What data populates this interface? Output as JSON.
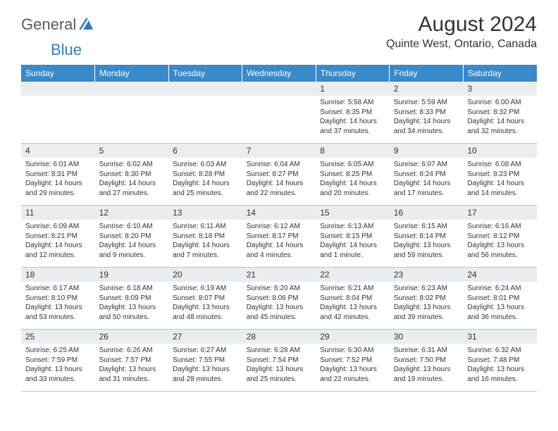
{
  "brand": {
    "text_general": "General",
    "text_blue": "Blue",
    "mark_color": "#2f7fc0"
  },
  "header": {
    "title": "August 2024",
    "location": "Quinte West, Ontario, Canada"
  },
  "colors": {
    "header_bg": "#3a89c9",
    "daynum_bg": "#e9edef",
    "border": "#b8c4cc",
    "text": "#333333"
  },
  "weekdays": [
    "Sunday",
    "Monday",
    "Tuesday",
    "Wednesday",
    "Thursday",
    "Friday",
    "Saturday"
  ],
  "weeks": [
    {
      "nums": [
        "",
        "",
        "",
        "",
        "1",
        "2",
        "3"
      ],
      "info": [
        "",
        "",
        "",
        "",
        "Sunrise: 5:58 AM\nSunset: 8:35 PM\nDaylight: 14 hours\nand 37 minutes.",
        "Sunrise: 5:59 AM\nSunset: 8:33 PM\nDaylight: 14 hours\nand 34 minutes.",
        "Sunrise: 6:00 AM\nSunset: 8:32 PM\nDaylight: 14 hours\nand 32 minutes."
      ]
    },
    {
      "nums": [
        "4",
        "5",
        "6",
        "7",
        "8",
        "9",
        "10"
      ],
      "info": [
        "Sunrise: 6:01 AM\nSunset: 8:31 PM\nDaylight: 14 hours\nand 29 minutes.",
        "Sunrise: 6:02 AM\nSunset: 8:30 PM\nDaylight: 14 hours\nand 27 minutes.",
        "Sunrise: 6:03 AM\nSunset: 8:28 PM\nDaylight: 14 hours\nand 25 minutes.",
        "Sunrise: 6:04 AM\nSunset: 8:27 PM\nDaylight: 14 hours\nand 22 minutes.",
        "Sunrise: 6:05 AM\nSunset: 8:25 PM\nDaylight: 14 hours\nand 20 minutes.",
        "Sunrise: 6:07 AM\nSunset: 8:24 PM\nDaylight: 14 hours\nand 17 minutes.",
        "Sunrise: 6:08 AM\nSunset: 8:23 PM\nDaylight: 14 hours\nand 14 minutes."
      ]
    },
    {
      "nums": [
        "11",
        "12",
        "13",
        "14",
        "15",
        "16",
        "17"
      ],
      "info": [
        "Sunrise: 6:09 AM\nSunset: 8:21 PM\nDaylight: 14 hours\nand 12 minutes.",
        "Sunrise: 6:10 AM\nSunset: 8:20 PM\nDaylight: 14 hours\nand 9 minutes.",
        "Sunrise: 6:11 AM\nSunset: 8:18 PM\nDaylight: 14 hours\nand 7 minutes.",
        "Sunrise: 6:12 AM\nSunset: 8:17 PM\nDaylight: 14 hours\nand 4 minutes.",
        "Sunrise: 6:13 AM\nSunset: 8:15 PM\nDaylight: 14 hours\nand 1 minute.",
        "Sunrise: 6:15 AM\nSunset: 8:14 PM\nDaylight: 13 hours\nand 59 minutes.",
        "Sunrise: 6:16 AM\nSunset: 8:12 PM\nDaylight: 13 hours\nand 56 minutes."
      ]
    },
    {
      "nums": [
        "18",
        "19",
        "20",
        "21",
        "22",
        "23",
        "24"
      ],
      "info": [
        "Sunrise: 6:17 AM\nSunset: 8:10 PM\nDaylight: 13 hours\nand 53 minutes.",
        "Sunrise: 6:18 AM\nSunset: 8:09 PM\nDaylight: 13 hours\nand 50 minutes.",
        "Sunrise: 6:19 AM\nSunset: 8:07 PM\nDaylight: 13 hours\nand 48 minutes.",
        "Sunrise: 6:20 AM\nSunset: 8:06 PM\nDaylight: 13 hours\nand 45 minutes.",
        "Sunrise: 6:21 AM\nSunset: 8:04 PM\nDaylight: 13 hours\nand 42 minutes.",
        "Sunrise: 6:23 AM\nSunset: 8:02 PM\nDaylight: 13 hours\nand 39 minutes.",
        "Sunrise: 6:24 AM\nSunset: 8:01 PM\nDaylight: 13 hours\nand 36 minutes."
      ]
    },
    {
      "nums": [
        "25",
        "26",
        "27",
        "28",
        "29",
        "30",
        "31"
      ],
      "info": [
        "Sunrise: 6:25 AM\nSunset: 7:59 PM\nDaylight: 13 hours\nand 33 minutes.",
        "Sunrise: 6:26 AM\nSunset: 7:57 PM\nDaylight: 13 hours\nand 31 minutes.",
        "Sunrise: 6:27 AM\nSunset: 7:55 PM\nDaylight: 13 hours\nand 28 minutes.",
        "Sunrise: 6:28 AM\nSunset: 7:54 PM\nDaylight: 13 hours\nand 25 minutes.",
        "Sunrise: 6:30 AM\nSunset: 7:52 PM\nDaylight: 13 hours\nand 22 minutes.",
        "Sunrise: 6:31 AM\nSunset: 7:50 PM\nDaylight: 13 hours\nand 19 minutes.",
        "Sunrise: 6:32 AM\nSunset: 7:48 PM\nDaylight: 13 hours\nand 16 minutes."
      ]
    }
  ]
}
